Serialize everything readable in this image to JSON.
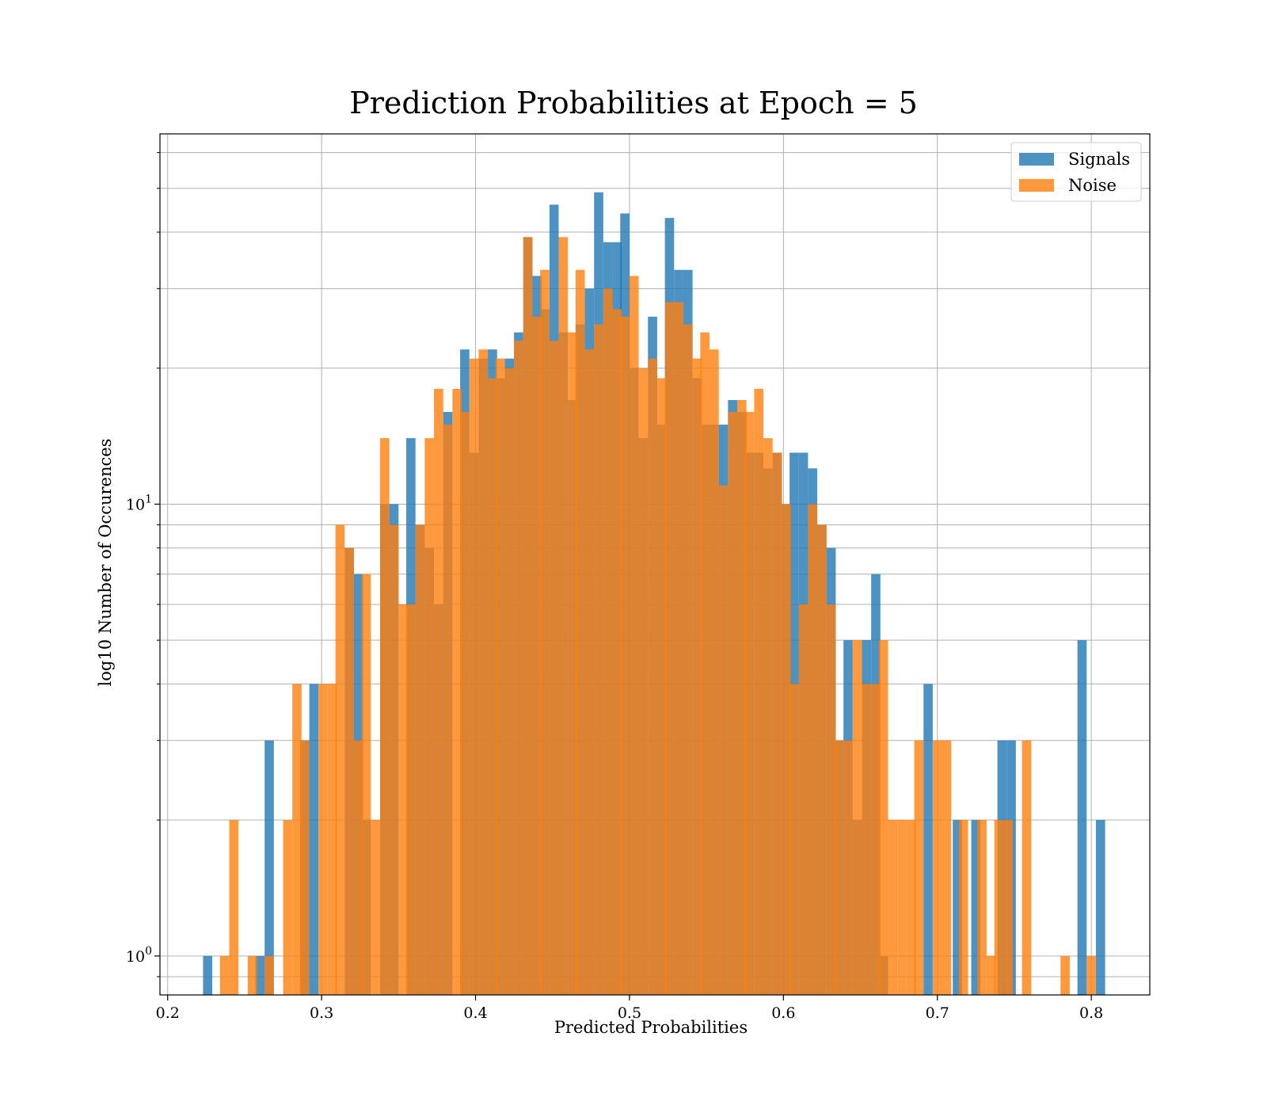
{
  "chart_data": {
    "type": "bar",
    "title": "Prediction Probabilities at Epoch = 5",
    "xlabel": "Predicted Probabilities",
    "ylabel": "log10 Number of Occurences",
    "xlim": [
      0.195,
      0.838
    ],
    "ylim": [
      0.82,
      66
    ],
    "yscale": "log",
    "bin_width": 0.00578,
    "xticks": [
      {
        "value": 0.2,
        "label": "0.2"
      },
      {
        "value": 0.3,
        "label": "0.3"
      },
      {
        "value": 0.4,
        "label": "0.4"
      },
      {
        "value": 0.5,
        "label": "0.5"
      },
      {
        "value": 0.6,
        "label": "0.6"
      },
      {
        "value": 0.7,
        "label": "0.7"
      },
      {
        "value": 0.8,
        "label": "0.8"
      }
    ],
    "yticks_major": [
      {
        "value": 1,
        "base": "10",
        "exp": "0"
      },
      {
        "value": 10,
        "base": "10",
        "exp": "1"
      }
    ],
    "yticks_minor": [
      0.9,
      2,
      3,
      4,
      5,
      6,
      7,
      8,
      9,
      20,
      30,
      40,
      50,
      60
    ],
    "grid": true,
    "legend_position": "top-right",
    "colors": {
      "signals": "#1f77b4",
      "noise": "#ff7f0e"
    },
    "series": [
      {
        "name": "Signals",
        "color": "#1f77b4",
        "x": [
          0.223,
          0.257,
          0.263,
          0.286,
          0.292,
          0.315,
          0.321,
          0.326,
          0.338,
          0.344,
          0.355,
          0.361,
          0.367,
          0.373,
          0.379,
          0.39,
          0.396,
          0.402,
          0.408,
          0.413,
          0.419,
          0.425,
          0.431,
          0.437,
          0.442,
          0.448,
          0.454,
          0.46,
          0.465,
          0.471,
          0.477,
          0.483,
          0.489,
          0.494,
          0.5,
          0.506,
          0.512,
          0.518,
          0.523,
          0.529,
          0.535,
          0.541,
          0.546,
          0.552,
          0.558,
          0.564,
          0.57,
          0.575,
          0.581,
          0.587,
          0.593,
          0.599,
          0.604,
          0.61,
          0.616,
          0.622,
          0.628,
          0.633,
          0.639,
          0.645,
          0.651,
          0.657,
          0.662,
          0.691,
          0.71,
          0.722,
          0.739,
          0.745,
          0.791,
          0.803
        ],
        "values": [
          1,
          1,
          3,
          3,
          4,
          8,
          7,
          2,
          10,
          10,
          14,
          9,
          8,
          6,
          16,
          22,
          13,
          21,
          22,
          19,
          21,
          24,
          39,
          32,
          27,
          46,
          24,
          17,
          25,
          30,
          49,
          38,
          38,
          44,
          20,
          14,
          26,
          15,
          43,
          33,
          33,
          19,
          15,
          15,
          15,
          17,
          16,
          13,
          13,
          12,
          13,
          10,
          13,
          13,
          12,
          9,
          8,
          3,
          5,
          2,
          5,
          7,
          1,
          4,
          2,
          2,
          3,
          3,
          5,
          2
        ]
      },
      {
        "name": "Noise",
        "color": "#ff7f0e",
        "x": [
          0.234,
          0.24,
          0.252,
          0.263,
          0.275,
          0.281,
          0.286,
          0.298,
          0.304,
          0.309,
          0.315,
          0.321,
          0.326,
          0.332,
          0.338,
          0.344,
          0.35,
          0.355,
          0.361,
          0.367,
          0.373,
          0.379,
          0.385,
          0.39,
          0.396,
          0.402,
          0.408,
          0.413,
          0.419,
          0.425,
          0.431,
          0.437,
          0.442,
          0.448,
          0.454,
          0.46,
          0.465,
          0.471,
          0.477,
          0.483,
          0.489,
          0.494,
          0.5,
          0.506,
          0.512,
          0.518,
          0.523,
          0.529,
          0.535,
          0.541,
          0.546,
          0.552,
          0.558,
          0.564,
          0.57,
          0.575,
          0.581,
          0.587,
          0.593,
          0.599,
          0.604,
          0.61,
          0.616,
          0.622,
          0.628,
          0.633,
          0.639,
          0.645,
          0.651,
          0.657,
          0.662,
          0.668,
          0.674,
          0.68,
          0.685,
          0.697,
          0.703,
          0.714,
          0.726,
          0.732,
          0.737,
          0.743,
          0.755,
          0.78,
          0.797
        ],
        "values": [
          1,
          2,
          1,
          1,
          2,
          4,
          3,
          4,
          4,
          9,
          8,
          3,
          7,
          2,
          14,
          9,
          6,
          6,
          9,
          14,
          18,
          15,
          18,
          16,
          21,
          22,
          19,
          21,
          20,
          23,
          39,
          26,
          33,
          23,
          39,
          24,
          33,
          22,
          25,
          30,
          27,
          26,
          32,
          20,
          21,
          19,
          28,
          28,
          25,
          21,
          24,
          22,
          11,
          16,
          17,
          16,
          18,
          14,
          13,
          10,
          4,
          6,
          10,
          9,
          6,
          3,
          3,
          5,
          4,
          4,
          5,
          2,
          2,
          2,
          3,
          3,
          3,
          2,
          2,
          1,
          2,
          2,
          3,
          1,
          1
        ]
      }
    ]
  }
}
